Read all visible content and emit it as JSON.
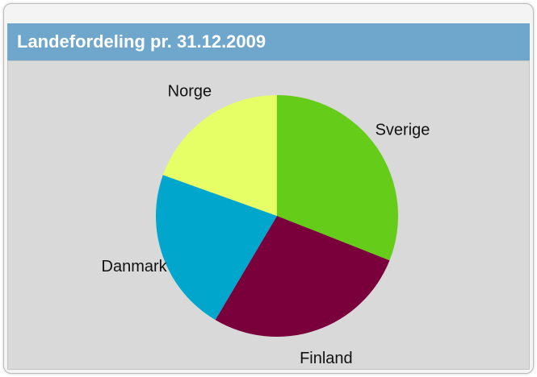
{
  "chart_data": {
    "type": "pie",
    "title": "Landefordeling pr. 31.12.2009",
    "categories": [
      "Sverige",
      "Finland",
      "Danmark",
      "Norge"
    ],
    "values": [
      31,
      27.5,
      22,
      19.5
    ],
    "colors": [
      "#66cc1a",
      "#7a003c",
      "#00a6cc",
      "#e6ff66"
    ]
  }
}
